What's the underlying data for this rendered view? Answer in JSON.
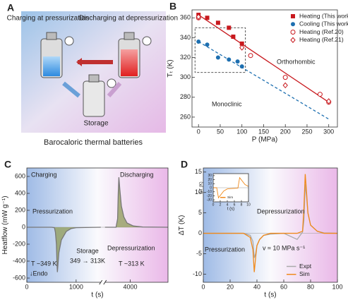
{
  "illustration": {
    "label": "A",
    "charging": "Charging at pressurization",
    "discharging": "Discharging at depressurization",
    "storage": "Storage",
    "caption": "Barocaloric thermal batteries"
  },
  "chart_data": [
    {
      "type": "scatter",
      "label": "B",
      "x_label": "P (MPa)",
      "y_label": "Tₜ (K)",
      "xlim": [
        -15,
        320
      ],
      "ylim": [
        250,
        368
      ],
      "xticks": [
        0,
        50,
        100,
        150,
        200,
        250,
        300
      ],
      "yticks": [
        260,
        280,
        300,
        320,
        340,
        360
      ],
      "legend": "upper right",
      "series": [
        {
          "name": "Heating (This work)",
          "color": "#c8191e",
          "marker": "square",
          "x": [
            0,
            20,
            45,
            70,
            80,
            100
          ],
          "values": [
            363,
            360,
            355,
            350,
            341,
            334
          ]
        },
        {
          "name": "Cooling (This work)",
          "color": "#1d6fb0",
          "marker": "circle",
          "x": [
            0,
            20,
            45,
            70,
            90,
            100
          ],
          "values": [
            336,
            333,
            320,
            318,
            316,
            311
          ]
        },
        {
          "name": "Heating (Ref.20)",
          "color": "#c8191e",
          "marker": "circle-open",
          "x": [
            0,
            120,
            200,
            280,
            300
          ],
          "values": [
            360,
            322,
            300,
            283,
            275
          ]
        },
        {
          "name": "Heating (Ref.21)",
          "color": "#c8191e",
          "marker": "diamond-open",
          "x": [
            0,
            100,
            200,
            300
          ],
          "values": [
            361,
            330,
            292,
            276
          ]
        }
      ],
      "fits": [
        {
          "color": "#c8191e",
          "dash": false,
          "x": [
            0,
            300
          ],
          "values": [
            363,
            275
          ]
        },
        {
          "color": "#1d6fb0",
          "dash": true,
          "x": [
            0,
            300
          ],
          "values": [
            336,
            258
          ]
        }
      ],
      "annotations": [
        "Orthorhombic",
        "Monoclinic"
      ]
    },
    {
      "type": "line",
      "label": "C",
      "x_label": "t (s)",
      "y_label": "Heatflow (mW g⁻¹)",
      "xlim": [
        0,
        5200
      ],
      "axis_break": [
        1500,
        3200
      ],
      "ylim": [
        -650,
        700
      ],
      "xticks": [
        0,
        1000,
        4000
      ],
      "yticks": [
        -600,
        -400,
        -200,
        0,
        200,
        400,
        600
      ],
      "series": [
        {
          "color": "#777",
          "fill": "#8e9a55",
          "x": [
            0,
            500,
            560,
            580,
            600,
            610,
            620,
            650,
            700,
            800,
            900,
            1000,
            1500
          ],
          "values": [
            0,
            0,
            -5,
            -60,
            -200,
            -400,
            -530,
            -300,
            -150,
            -50,
            -15,
            -5,
            0
          ]
        },
        {
          "color": "#777",
          "fill": "#8e9a55",
          "x": [
            3200,
            3550,
            3600,
            3620,
            3640,
            3670,
            3720,
            3800,
            3900,
            4100,
            4400,
            5200
          ],
          "values": [
            0,
            0,
            100,
            400,
            590,
            450,
            250,
            120,
            50,
            15,
            3,
            0
          ]
        }
      ],
      "annotations": [
        "Charging",
        "Discharging",
        "Pressurization",
        "Storage",
        "349 → 313K",
        "Depressurization",
        "T ~349 K",
        "T ~313 K",
        "↓Endo"
      ]
    },
    {
      "type": "line",
      "label": "D",
      "x_label": "t (s)",
      "y_label": "ΔT (K)",
      "xlim": [
        0,
        100
      ],
      "ylim": [
        -12,
        16
      ],
      "xticks": [
        0,
        20,
        40,
        60,
        80,
        100
      ],
      "yticks": [
        -10,
        -5,
        0,
        5,
        10,
        15
      ],
      "legend": "lower right",
      "series": [
        {
          "name": "Expt",
          "color": "#aaa",
          "x": [
            0,
            30,
            35,
            37,
            38,
            39,
            40,
            42,
            45,
            50,
            60,
            70,
            74,
            75,
            76,
            77,
            78,
            80,
            85,
            90,
            100
          ],
          "values": [
            0,
            0,
            -0.5,
            -2,
            -6,
            -5,
            -3,
            -1.5,
            -0.5,
            -0.2,
            0,
            -1.5,
            0.3,
            3,
            12,
            9,
            5,
            2,
            0.5,
            0.1,
            0
          ]
        },
        {
          "name": "Sim",
          "color": "#f08a1c",
          "x": [
            0,
            30,
            35,
            37,
            38,
            39,
            40,
            42,
            45,
            50,
            60,
            70,
            74,
            75,
            76,
            77,
            78,
            80,
            85,
            90,
            100
          ],
          "values": [
            0,
            0,
            -1,
            -4,
            -9.5,
            -6,
            -3,
            -1.5,
            -0.5,
            0,
            0,
            0,
            0.5,
            6,
            14.5,
            10,
            5,
            2,
            0.5,
            0,
            0
          ]
        }
      ],
      "annotations": [
        "Depressurization",
        "Pressurization",
        "v ≈ 10 MPa s⁻¹"
      ]
    },
    {
      "type": "line",
      "x_label": "t (s)",
      "y_label": "ΔT (K)",
      "xlim": [
        0,
        10
      ],
      "ylim": [
        -35,
        35
      ],
      "xticks": [
        0,
        2,
        4,
        6,
        8,
        10
      ],
      "yticks": [
        -30,
        -20,
        -10,
        0,
        10,
        20,
        30
      ],
      "legend": "lower right",
      "series": [
        {
          "name": "Sim",
          "color": "#f08a1c",
          "x": [
            0,
            1,
            1.5,
            3,
            4,
            5,
            7,
            7.5,
            9,
            10
          ],
          "values": [
            0,
            0,
            -25,
            -8,
            -3,
            -2,
            -1,
            25,
            8,
            3
          ]
        }
      ]
    }
  ]
}
